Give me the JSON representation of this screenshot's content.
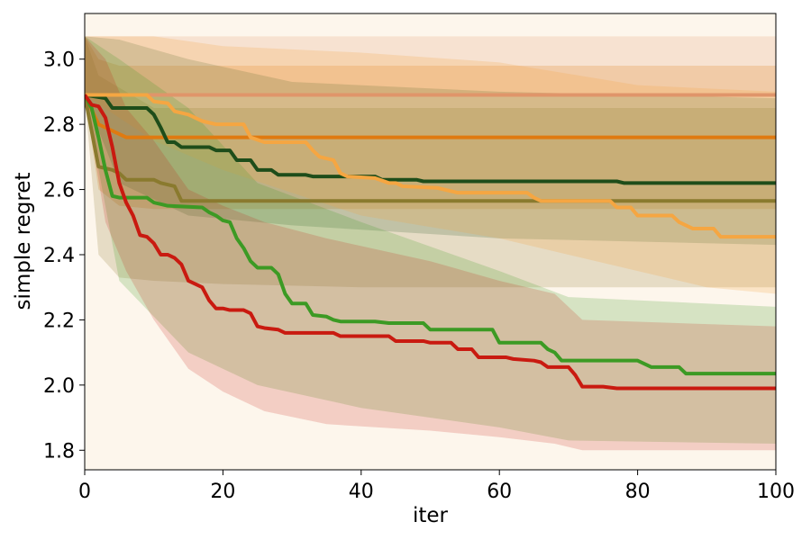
{
  "chart_data": {
    "type": "line",
    "title": "",
    "xlabel": "iter",
    "ylabel": "simple regret",
    "xlim": [
      0,
      100
    ],
    "ylim": [
      1.74,
      3.14
    ],
    "xticks": [
      0,
      20,
      40,
      60,
      80,
      100
    ],
    "yticks": [
      1.8,
      2.0,
      2.2,
      2.4,
      2.6,
      2.8,
      3.0
    ],
    "ytick_labels": [
      "1.8",
      "2.0",
      "2.2",
      "2.4",
      "2.6",
      "2.8",
      "3.0"
    ],
    "grid": false,
    "legend": "none",
    "background_color": "#fdf6ec",
    "series": [
      {
        "color": "#e0956a",
        "points": [
          [
            0,
            2.89
          ],
          [
            100,
            2.89
          ]
        ],
        "band_lower": [
          [
            0,
            2.89
          ],
          [
            100,
            2.89
          ]
        ],
        "band_upper": [
          [
            0,
            3.07
          ],
          [
            100,
            3.07
          ]
        ],
        "band_opacity": 0.2
      },
      {
        "color": "#e07a10",
        "points": [
          [
            0,
            2.89
          ],
          [
            2,
            2.8
          ],
          [
            4,
            2.78
          ],
          [
            5,
            2.77
          ],
          [
            6,
            2.76
          ],
          [
            100,
            2.76
          ]
        ],
        "band_lower": [
          [
            0,
            2.89
          ],
          [
            2,
            2.6
          ],
          [
            5,
            2.55
          ],
          [
            10,
            2.54
          ],
          [
            100,
            2.54
          ]
        ],
        "band_upper": [
          [
            0,
            3.07
          ],
          [
            2,
            3.0
          ],
          [
            5,
            2.98
          ],
          [
            100,
            2.98
          ]
        ],
        "band_opacity": 0.22
      },
      {
        "color": "#8a7a2e",
        "points": [
          [
            0,
            2.89
          ],
          [
            2,
            2.67
          ],
          [
            4,
            2.66
          ],
          [
            5,
            2.65
          ],
          [
            6,
            2.63
          ],
          [
            10,
            2.63
          ],
          [
            11,
            2.62
          ],
          [
            13,
            2.61
          ],
          [
            14,
            2.565
          ],
          [
            100,
            2.565
          ]
        ],
        "band_lower": [
          [
            0,
            2.89
          ],
          [
            2,
            2.4
          ],
          [
            5,
            2.33
          ],
          [
            10,
            2.32
          ],
          [
            20,
            2.31
          ],
          [
            40,
            2.3
          ],
          [
            100,
            2.3
          ]
        ],
        "band_upper": [
          [
            0,
            3.07
          ],
          [
            2,
            2.95
          ],
          [
            10,
            2.85
          ],
          [
            100,
            2.85
          ]
        ],
        "band_opacity": 0.2
      },
      {
        "color": "#1e4d1a",
        "points": [
          [
            0,
            2.89
          ],
          [
            3,
            2.88
          ],
          [
            4,
            2.85
          ],
          [
            9,
            2.85
          ],
          [
            10,
            2.83
          ],
          [
            11,
            2.79
          ],
          [
            12,
            2.745
          ],
          [
            13,
            2.745
          ],
          [
            14,
            2.73
          ],
          [
            18,
            2.73
          ],
          [
            19,
            2.72
          ],
          [
            21,
            2.72
          ],
          [
            22,
            2.69
          ],
          [
            24,
            2.69
          ],
          [
            25,
            2.66
          ],
          [
            27,
            2.66
          ],
          [
            28,
            2.645
          ],
          [
            32,
            2.645
          ],
          [
            33,
            2.64
          ],
          [
            42,
            2.64
          ],
          [
            43,
            2.63
          ],
          [
            48,
            2.63
          ],
          [
            49,
            2.625
          ],
          [
            77,
            2.625
          ],
          [
            78,
            2.62
          ],
          [
            100,
            2.62
          ]
        ],
        "band_lower": [
          [
            0,
            2.89
          ],
          [
            5,
            2.62
          ],
          [
            15,
            2.52
          ],
          [
            30,
            2.49
          ],
          [
            60,
            2.45
          ],
          [
            100,
            2.43
          ]
        ],
        "band_upper": [
          [
            0,
            3.07
          ],
          [
            5,
            3.06
          ],
          [
            15,
            3.0
          ],
          [
            30,
            2.93
          ],
          [
            60,
            2.9
          ],
          [
            100,
            2.88
          ]
        ],
        "band_opacity": 0.18
      },
      {
        "color": "#f5a642",
        "points": [
          [
            0,
            2.89
          ],
          [
            9,
            2.89
          ],
          [
            10,
            2.87
          ],
          [
            12,
            2.865
          ],
          [
            13,
            2.84
          ],
          [
            15,
            2.83
          ],
          [
            16,
            2.82
          ],
          [
            17,
            2.81
          ],
          [
            19,
            2.8
          ],
          [
            23,
            2.8
          ],
          [
            24,
            2.76
          ],
          [
            26,
            2.745
          ],
          [
            32,
            2.745
          ],
          [
            33,
            2.72
          ],
          [
            34,
            2.7
          ],
          [
            36,
            2.69
          ],
          [
            37,
            2.65
          ],
          [
            38,
            2.64
          ],
          [
            42,
            2.635
          ],
          [
            44,
            2.62
          ],
          [
            45,
            2.62
          ],
          [
            46,
            2.61
          ],
          [
            51,
            2.605
          ],
          [
            54,
            2.59
          ],
          [
            58,
            2.59
          ],
          [
            64,
            2.59
          ],
          [
            65,
            2.575
          ],
          [
            66,
            2.565
          ],
          [
            76,
            2.565
          ],
          [
            77,
            2.545
          ],
          [
            79,
            2.545
          ],
          [
            80,
            2.52
          ],
          [
            85,
            2.52
          ],
          [
            86,
            2.5
          ],
          [
            87,
            2.49
          ],
          [
            88,
            2.48
          ],
          [
            91,
            2.48
          ],
          [
            92,
            2.455
          ],
          [
            100,
            2.455
          ]
        ],
        "band_lower": [
          [
            0,
            2.89
          ],
          [
            10,
            2.75
          ],
          [
            20,
            2.66
          ],
          [
            40,
            2.52
          ],
          [
            60,
            2.45
          ],
          [
            80,
            2.35
          ],
          [
            90,
            2.3
          ],
          [
            100,
            2.28
          ]
        ],
        "band_upper": [
          [
            0,
            3.07
          ],
          [
            10,
            3.07
          ],
          [
            20,
            3.04
          ],
          [
            40,
            3.02
          ],
          [
            60,
            2.99
          ],
          [
            80,
            2.92
          ],
          [
            100,
            2.9
          ]
        ],
        "band_opacity": 0.22
      },
      {
        "color": "#3c9a24",
        "points": [
          [
            0,
            2.89
          ],
          [
            1,
            2.85
          ],
          [
            2,
            2.76
          ],
          [
            3,
            2.66
          ],
          [
            4,
            2.58
          ],
          [
            5,
            2.575
          ],
          [
            9,
            2.575
          ],
          [
            10,
            2.56
          ],
          [
            11,
            2.555
          ],
          [
            12,
            2.55
          ],
          [
            17,
            2.545
          ],
          [
            18,
            2.53
          ],
          [
            19,
            2.52
          ],
          [
            20,
            2.505
          ],
          [
            21,
            2.5
          ],
          [
            22,
            2.45
          ],
          [
            23,
            2.42
          ],
          [
            24,
            2.38
          ],
          [
            25,
            2.36
          ],
          [
            27,
            2.36
          ],
          [
            28,
            2.34
          ],
          [
            29,
            2.28
          ],
          [
            30,
            2.25
          ],
          [
            32,
            2.25
          ],
          [
            33,
            2.215
          ],
          [
            35,
            2.21
          ],
          [
            36,
            2.2
          ],
          [
            37,
            2.195
          ],
          [
            42,
            2.195
          ],
          [
            44,
            2.19
          ],
          [
            49,
            2.19
          ],
          [
            50,
            2.17
          ],
          [
            59,
            2.17
          ],
          [
            60,
            2.13
          ],
          [
            66,
            2.13
          ],
          [
            67,
            2.11
          ],
          [
            68,
            2.1
          ],
          [
            69,
            2.075
          ],
          [
            75,
            2.075
          ],
          [
            80,
            2.075
          ],
          [
            82,
            2.055
          ],
          [
            86,
            2.055
          ],
          [
            87,
            2.035
          ],
          [
            100,
            2.035
          ]
        ],
        "band_lower": [
          [
            0,
            2.89
          ],
          [
            5,
            2.32
          ],
          [
            15,
            2.1
          ],
          [
            25,
            2.0
          ],
          [
            40,
            1.93
          ],
          [
            60,
            1.87
          ],
          [
            70,
            1.83
          ],
          [
            100,
            1.82
          ]
        ],
        "band_upper": [
          [
            0,
            3.07
          ],
          [
            5,
            3.0
          ],
          [
            15,
            2.85
          ],
          [
            25,
            2.62
          ],
          [
            40,
            2.5
          ],
          [
            60,
            2.35
          ],
          [
            70,
            2.27
          ],
          [
            100,
            2.24
          ]
        ],
        "band_opacity": 0.2
      },
      {
        "color": "#c91a10",
        "points": [
          [
            0,
            2.89
          ],
          [
            1,
            2.86
          ],
          [
            2,
            2.855
          ],
          [
            3,
            2.82
          ],
          [
            4,
            2.73
          ],
          [
            5,
            2.62
          ],
          [
            6,
            2.56
          ],
          [
            7,
            2.52
          ],
          [
            8,
            2.46
          ],
          [
            9,
            2.455
          ],
          [
            10,
            2.435
          ],
          [
            11,
            2.4
          ],
          [
            12,
            2.4
          ],
          [
            13,
            2.39
          ],
          [
            14,
            2.37
          ],
          [
            15,
            2.32
          ],
          [
            16,
            2.31
          ],
          [
            17,
            2.3
          ],
          [
            18,
            2.26
          ],
          [
            19,
            2.235
          ],
          [
            20,
            2.235
          ],
          [
            21,
            2.23
          ],
          [
            23,
            2.23
          ],
          [
            24,
            2.22
          ],
          [
            25,
            2.18
          ],
          [
            26,
            2.175
          ],
          [
            28,
            2.17
          ],
          [
            29,
            2.16
          ],
          [
            36,
            2.16
          ],
          [
            37,
            2.15
          ],
          [
            44,
            2.15
          ],
          [
            45,
            2.135
          ],
          [
            49,
            2.135
          ],
          [
            50,
            2.13
          ],
          [
            53,
            2.13
          ],
          [
            54,
            2.11
          ],
          [
            56,
            2.11
          ],
          [
            57,
            2.085
          ],
          [
            61,
            2.085
          ],
          [
            62,
            2.08
          ],
          [
            65,
            2.075
          ],
          [
            66,
            2.07
          ],
          [
            67,
            2.055
          ],
          [
            70,
            2.055
          ],
          [
            71,
            2.03
          ],
          [
            72,
            1.995
          ],
          [
            75,
            1.995
          ],
          [
            77,
            1.99
          ],
          [
            93,
            1.99
          ],
          [
            94,
            1.99
          ],
          [
            100,
            1.99
          ]
        ],
        "band_lower": [
          [
            0,
            2.89
          ],
          [
            3,
            2.5
          ],
          [
            6,
            2.35
          ],
          [
            10,
            2.2
          ],
          [
            15,
            2.05
          ],
          [
            20,
            1.98
          ],
          [
            26,
            1.92
          ],
          [
            35,
            1.88
          ],
          [
            50,
            1.86
          ],
          [
            60,
            1.84
          ],
          [
            68,
            1.82
          ],
          [
            72,
            1.8
          ],
          [
            100,
            1.8
          ]
        ],
        "band_upper": [
          [
            0,
            3.07
          ],
          [
            3,
            3.0
          ],
          [
            6,
            2.85
          ],
          [
            10,
            2.75
          ],
          [
            15,
            2.6
          ],
          [
            20,
            2.55
          ],
          [
            26,
            2.5
          ],
          [
            35,
            2.45
          ],
          [
            50,
            2.38
          ],
          [
            60,
            2.32
          ],
          [
            68,
            2.28
          ],
          [
            72,
            2.2
          ],
          [
            100,
            2.18
          ]
        ],
        "band_opacity": 0.18
      }
    ]
  }
}
